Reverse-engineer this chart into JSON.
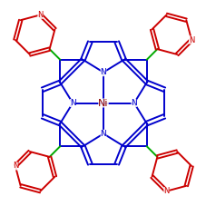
{
  "background_color": "#ffffff",
  "porphyrin_color": "#0000cc",
  "ni_color": "#8b0000",
  "n_color": "#0000cc",
  "pyridyl_n_color": "#cc0000",
  "pyridyl_color": "#cc0000",
  "meso_bond_color": "#00aa00",
  "linewidth": 1.4,
  "figsize": [
    2.28,
    2.27
  ],
  "dpi": 100,
  "xlim": [
    -2.6,
    2.6
  ],
  "ylim": [
    -2.6,
    2.6
  ]
}
